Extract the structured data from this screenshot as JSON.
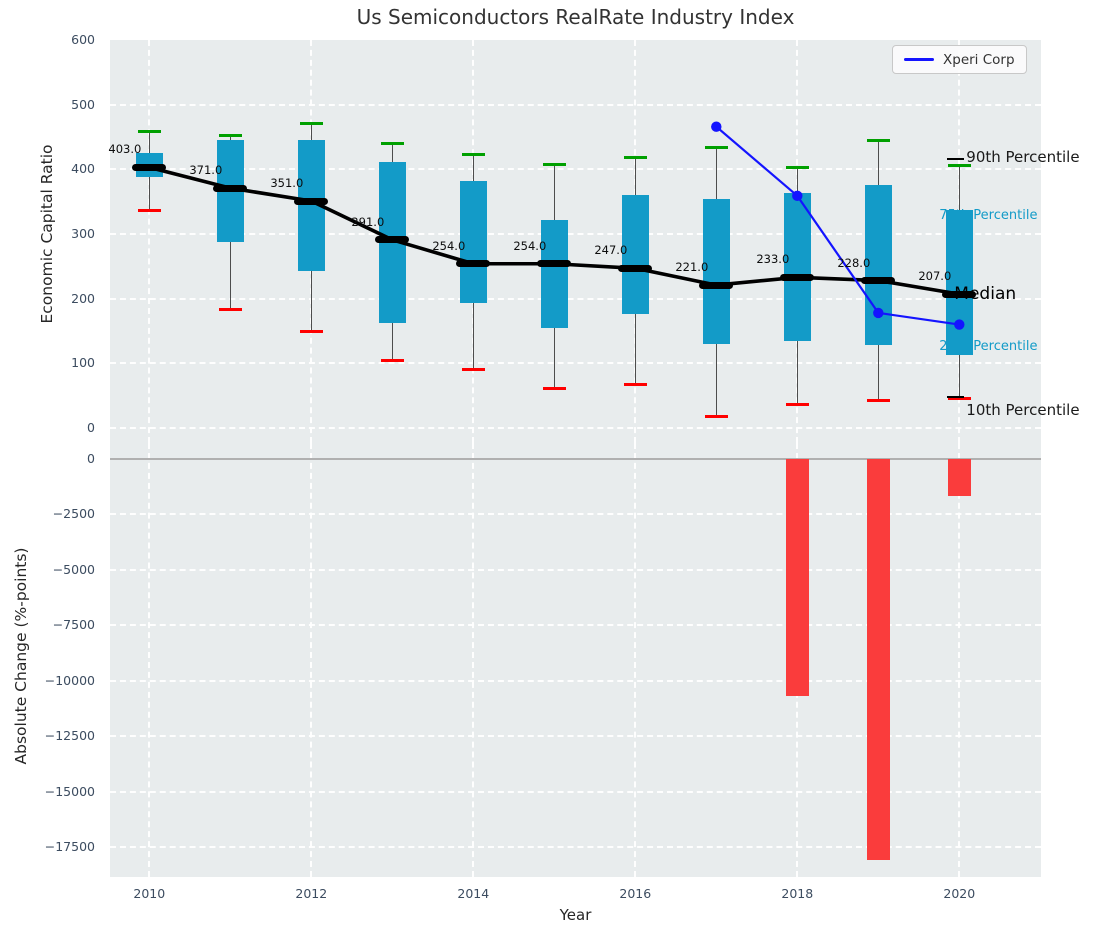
{
  "title": "Us Semiconductors RealRate Industry Index",
  "legend": {
    "items": [
      {
        "label": "Xperi Corp"
      }
    ]
  },
  "top_axis": {
    "ylabel": "Economic Capital Ratio",
    "yticks": [
      600,
      500,
      400,
      300,
      200,
      100,
      0
    ],
    "ylim": [
      -23,
      600
    ],
    "grid": true
  },
  "bottom_axis": {
    "ylabel": "Absolute Change (%-points)",
    "xlabel": "Year",
    "yticks": [
      0,
      -2500,
      -5000,
      -7500,
      -10000,
      -12500,
      -15000,
      -17500
    ],
    "ylim": [
      700,
      -18850
    ],
    "xticks": [
      2010,
      2012,
      2014,
      2016,
      2018,
      2020
    ],
    "grid": true
  },
  "annotations": [
    {
      "id": "p90",
      "text": "90th Percentile"
    },
    {
      "id": "p75",
      "text": "75th Percentile"
    },
    {
      "id": "median",
      "text": "Median"
    },
    {
      "id": "p25",
      "text": "25th Percentile"
    },
    {
      "id": "p10",
      "text": "10th Percentile"
    }
  ],
  "chart_data": [
    {
      "type": "box",
      "panel": "top",
      "title": "Us Semiconductors RealRate Industry Index",
      "xlabel": "Year",
      "ylabel": "Economic Capital Ratio",
      "years": [
        2010,
        2011,
        2012,
        2013,
        2014,
        2015,
        2016,
        2017,
        2018,
        2019,
        2020
      ],
      "p10": [
        337,
        184,
        149,
        104,
        91,
        61,
        68,
        18,
        36,
        43,
        45
      ],
      "p25": [
        388,
        288,
        243,
        163,
        194,
        155,
        177,
        130,
        135,
        129,
        113
      ],
      "median": [
        403,
        371,
        351,
        291,
        254,
        254,
        247,
        221,
        233,
        228,
        207
      ],
      "p75": [
        425,
        445,
        446,
        411,
        382,
        321,
        361,
        354,
        363,
        376,
        337
      ],
      "p90": [
        458,
        452,
        471,
        440,
        423,
        408,
        419,
        433,
        403,
        444,
        406
      ],
      "median_labels": [
        "403.0",
        "371.0",
        "351.0",
        "291.0",
        "254.0",
        "254.0",
        "247.0",
        "221.0",
        "233.0",
        "228.0",
        "207.0"
      ],
      "series": [
        {
          "name": "Xperi Corp",
          "x": [
            2017,
            2018,
            2019,
            2020
          ],
          "y": [
            466,
            359,
            178,
            160
          ]
        }
      ]
    },
    {
      "type": "bar",
      "panel": "bottom",
      "ylabel": "Absolute Change (%-points)",
      "x": [
        2018,
        2019,
        2020
      ],
      "values": [
        -10700,
        -18100,
        -1700
      ]
    }
  ],
  "colors": {
    "box": "#139bc8",
    "whisker": "#4d4d4d",
    "cap_high": "#00a000",
    "cap_low": "#ff0000",
    "median": "#000000",
    "xperi": "#1414ff",
    "bar": "#fa3c3c",
    "panel_bg": "#e8eced",
    "grid": "#ffffff",
    "zero_line": "#b0b0b0",
    "tick_text": "#3c4c60",
    "label_text": "#262626",
    "title_text": "#333333",
    "annot_black": "#1a1a1a"
  }
}
